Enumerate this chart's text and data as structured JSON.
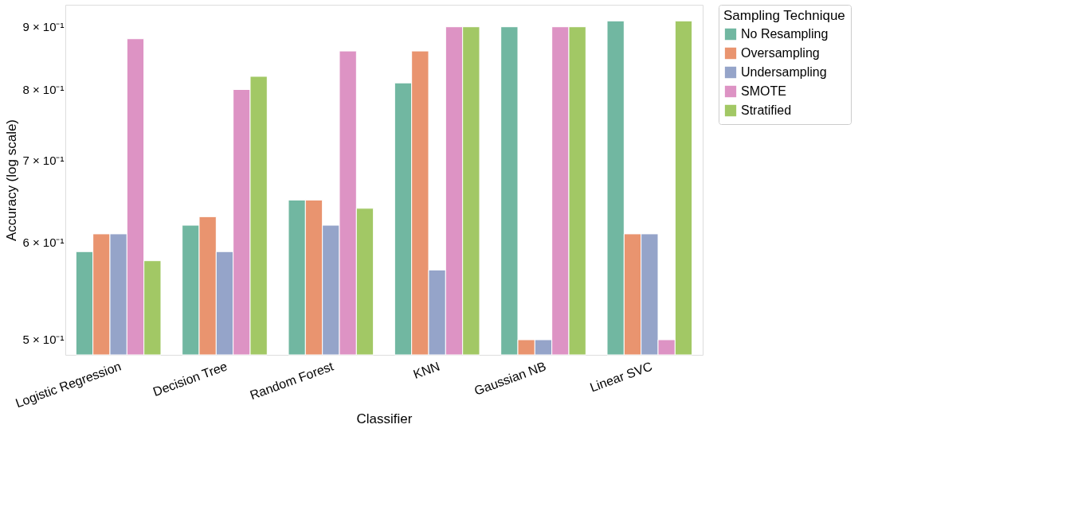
{
  "chart_data": {
    "type": "bar",
    "xlabel": "Classifier",
    "ylabel": "Accuracy (log scale)",
    "legend_title": "Sampling Technique",
    "categories": [
      "Logistic Regression",
      "Decision Tree",
      "Random Forest",
      "KNN",
      "Gaussian NB",
      "Linear SVC"
    ],
    "series": [
      {
        "name": "No Resampling",
        "color": "#71b7a1",
        "values": [
          0.59,
          0.62,
          0.65,
          0.81,
          0.9,
          0.91
        ]
      },
      {
        "name": "Oversampling",
        "color": "#e9946f",
        "values": [
          0.61,
          0.63,
          0.65,
          0.86,
          0.5,
          0.61
        ]
      },
      {
        "name": "Undersampling",
        "color": "#95a4c9",
        "values": [
          0.61,
          0.59,
          0.62,
          0.57,
          0.5,
          0.61
        ]
      },
      {
        "name": "SMOTE",
        "color": "#dd93c4",
        "values": [
          0.88,
          0.8,
          0.86,
          0.9,
          0.9,
          0.5
        ]
      },
      {
        "name": "Stratified",
        "color": "#a2c865",
        "values": [
          0.58,
          0.82,
          0.64,
          0.9,
          0.9,
          0.91
        ]
      }
    ],
    "log": true,
    "ylim": [
      0.486,
      0.938
    ],
    "yticks": [
      {
        "value": 0.5,
        "label": "5 × 10⁻¹"
      },
      {
        "value": 0.6,
        "label": "6 × 10⁻¹"
      },
      {
        "value": 0.7,
        "label": "7 × 10⁻¹"
      },
      {
        "value": 0.8,
        "label": "8 × 10⁻¹"
      },
      {
        "value": 0.9,
        "label": "9 × 10⁻¹"
      }
    ],
    "grid": false,
    "legend": "top right"
  }
}
